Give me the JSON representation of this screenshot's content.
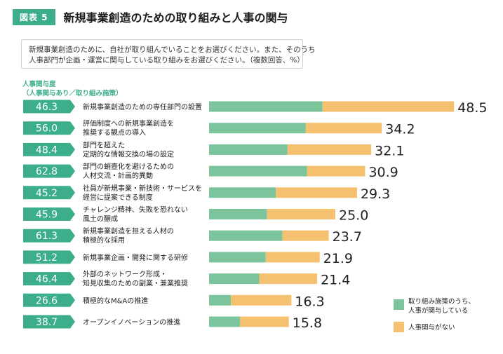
{
  "figure": {
    "label": "図表 5",
    "title": "新規事業創造のための取り組みと人事の関与"
  },
  "question": {
    "line1": "新規事業創造のために、自社が取り組んでいることをお選びください。また、そのうち",
    "line2": "人事部門が企画・運営に関与している取り組みをお選びください。（複数回答、%）"
  },
  "axis_note": {
    "line1": "人事関与度",
    "line2": "（人事関与あり／取り組み施策）"
  },
  "colors": {
    "involved": "#7cc49c",
    "not_involved": "#f5c170",
    "badge": "#3cae8c"
  },
  "legend": {
    "involved": [
      "取り組み施策のうち、",
      "人事が関与している"
    ],
    "not_involved": "人事関与がない"
  },
  "chart_data": {
    "type": "bar",
    "orientation": "horizontal",
    "stacked": true,
    "categories": [
      [
        "新規事業創造のための専任部門の設置"
      ],
      [
        "評価制度への新規事業創造を",
        "推奨する観点の導入"
      ],
      [
        "部門を超えた",
        "定期的な情報交換の場の設定"
      ],
      [
        "部門の蛸壺化を避けるための",
        "人材交流・計画的異動"
      ],
      [
        "社員が新規事業・新技術・サービスを",
        "経営に提案できる制度"
      ],
      [
        "チャレンジ精神、失敗を恐れない",
        "風土の醸成"
      ],
      [
        "新規事業創造を担える人材の",
        "積極的な採用"
      ],
      [
        "新規事業企画・開発に関する研修"
      ],
      [
        "外部のネットワーク形成・",
        "知見収集のための副業・兼業推奨"
      ],
      [
        "積極的なM&Aの推進"
      ],
      [
        "オープンイノベーションの推進"
      ]
    ],
    "total": [
      48.5,
      34.2,
      32.1,
      30.9,
      29.3,
      25.0,
      23.7,
      21.9,
      21.4,
      16.3,
      15.8
    ],
    "total_labels": [
      "48.5",
      "34.2",
      "32.1",
      "30.9",
      "29.3",
      "25.0",
      "23.7",
      "21.9",
      "21.4",
      "16.3",
      "15.8"
    ],
    "hr_involvement_rate": [
      "46.3",
      "56.0",
      "48.4",
      "62.8",
      "45.2",
      "45.9",
      "61.3",
      "51.2",
      "46.4",
      "26.6",
      "38.7"
    ],
    "series": [
      {
        "name": "取り組み施策のうち、人事が関与している",
        "share_of_total_pct": [
          46.3,
          56.0,
          48.4,
          62.8,
          45.2,
          45.9,
          61.3,
          51.2,
          46.4,
          26.6,
          38.7
        ]
      },
      {
        "name": "人事関与がない"
      }
    ],
    "xlim": [
      0,
      50
    ],
    "grid": false,
    "legend_position": "bottom-right"
  }
}
